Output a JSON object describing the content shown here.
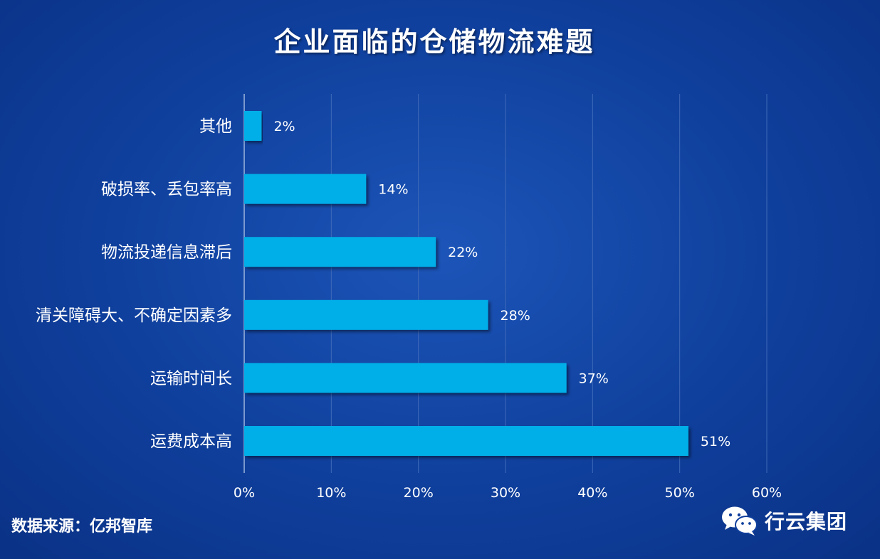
{
  "chart_data": {
    "type": "bar",
    "orientation": "horizontal",
    "title": "企业面临的仓储物流难题",
    "categories": [
      "其他",
      "破损率、丢包率高",
      "物流投递信息滞后",
      "清关障碍大、不确定因素多",
      "运输时间长",
      "运费成本高"
    ],
    "values": [
      2,
      14,
      22,
      28,
      37,
      51
    ],
    "value_labels": [
      "2%",
      "14%",
      "22%",
      "28%",
      "37%",
      "51%"
    ],
    "xlim": [
      0,
      60
    ],
    "x_ticks": [
      0,
      10,
      20,
      30,
      40,
      50,
      60
    ],
    "x_tick_labels": [
      "0%",
      "10%",
      "20%",
      "30%",
      "40%",
      "50%",
      "60%"
    ],
    "grid": "vertical",
    "bar_color": "#00aee8"
  },
  "footer": {
    "source": "数据来源：亿邦智库",
    "brand_name": "行云集团",
    "brand_icon": "wechat-icon"
  }
}
